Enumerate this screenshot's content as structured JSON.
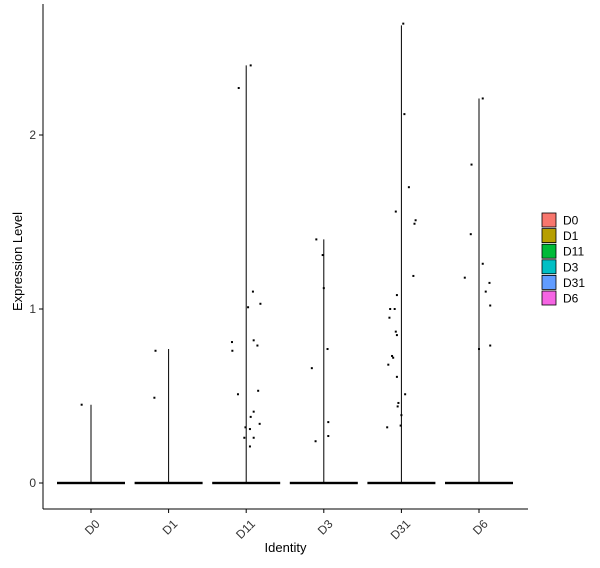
{
  "chart_data": {
    "type": "violin",
    "xlabel": "Identity",
    "ylabel": "Expression Level",
    "categories": [
      "D0",
      "D1",
      "D11",
      "D3",
      "D31",
      "D6"
    ],
    "ylim": [
      -0.15,
      2.75
    ],
    "yticks": [
      0,
      1,
      2
    ],
    "grid": false,
    "legend_position": "right",
    "series": [
      {
        "name": "D0",
        "color": "#F8766D",
        "max": 0.45,
        "points": [
          [
            -0.25,
            0.45
          ]
        ]
      },
      {
        "name": "D1",
        "color": "#B79F00",
        "max": 0.77,
        "points": [
          [
            -0.35,
            0.76
          ],
          [
            -0.38,
            0.49
          ]
        ]
      },
      {
        "name": "D11",
        "color": "#00BA38",
        "max": 2.4,
        "points": [
          [
            0.12,
            2.4
          ],
          [
            -0.2,
            2.27
          ],
          [
            -0.38,
            0.81
          ],
          [
            -0.37,
            0.76
          ],
          [
            -0.22,
            0.51
          ],
          [
            0.05,
            1.01
          ],
          [
            0.18,
            1.1
          ],
          [
            0.38,
            1.03
          ],
          [
            0.2,
            0.82
          ],
          [
            0.3,
            0.79
          ],
          [
            0.32,
            0.53
          ],
          [
            0.2,
            0.41
          ],
          [
            0.12,
            0.38
          ],
          [
            -0.02,
            0.32
          ],
          [
            0.1,
            0.31
          ],
          [
            -0.05,
            0.26
          ],
          [
            0.2,
            0.26
          ],
          [
            0.36,
            0.34
          ],
          [
            0.1,
            0.21
          ]
        ]
      },
      {
        "name": "D3",
        "color": "#00BFC4",
        "max": 1.4,
        "points": [
          [
            -0.2,
            1.4
          ],
          [
            -0.03,
            1.31
          ],
          [
            0.0,
            1.12
          ],
          [
            0.1,
            0.77
          ],
          [
            -0.32,
            0.66
          ],
          [
            0.12,
            0.35
          ],
          [
            0.12,
            0.27
          ],
          [
            -0.22,
            0.24
          ]
        ]
      },
      {
        "name": "D31",
        "color": "#619CFF",
        "max": 2.63,
        "points": [
          [
            0.05,
            2.64
          ],
          [
            0.08,
            2.12
          ],
          [
            -0.15,
            1.56
          ],
          [
            0.2,
            1.7
          ],
          [
            0.35,
            1.49
          ],
          [
            0.38,
            1.51
          ],
          [
            0.32,
            1.19
          ],
          [
            -0.3,
            1.0
          ],
          [
            -0.18,
            1.0
          ],
          [
            -0.12,
            1.08
          ],
          [
            -0.15,
            0.87
          ],
          [
            -0.12,
            0.85
          ],
          [
            -0.32,
            0.95
          ],
          [
            -0.25,
            0.73
          ],
          [
            -0.22,
            0.72
          ],
          [
            -0.35,
            0.68
          ],
          [
            -0.12,
            0.61
          ],
          [
            0.1,
            0.51
          ],
          [
            -0.08,
            0.46
          ],
          [
            -0.1,
            0.44
          ],
          [
            0.0,
            0.39
          ],
          [
            -0.38,
            0.32
          ],
          [
            -0.02,
            0.33
          ]
        ]
      },
      {
        "name": "D6",
        "color": "#F564E3",
        "max": 2.21,
        "points": [
          [
            0.1,
            2.21
          ],
          [
            -0.2,
            1.83
          ],
          [
            -0.22,
            1.43
          ],
          [
            -0.38,
            1.18
          ],
          [
            0.1,
            1.26
          ],
          [
            0.18,
            1.1
          ],
          [
            0.28,
            1.15
          ],
          [
            0.3,
            1.02
          ],
          [
            0.3,
            0.79
          ],
          [
            0.0,
            0.77
          ]
        ]
      }
    ]
  }
}
